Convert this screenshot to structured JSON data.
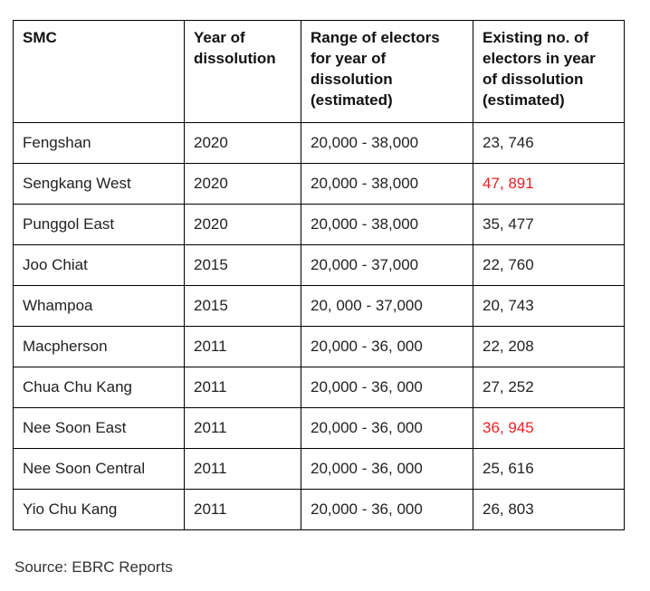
{
  "table": {
    "header": [
      [
        "SMC"
      ],
      [
        "Year of",
        "dissolution"
      ],
      [
        "Range of electors",
        "for year of",
        "dissolution",
        "(estimated)"
      ],
      [
        "Existing no. of",
        "electors in year",
        "of dissolution",
        "(estimated)"
      ]
    ],
    "rows": [
      [
        "Fengshan",
        "2020",
        "20,000 - 38,000",
        "23, 746"
      ],
      [
        "Sengkang West",
        "2020",
        "20,000 - 38,000",
        "47, 891"
      ],
      [
        "Punggol East",
        "2020",
        "20,000 - 38,000",
        "35, 477"
      ],
      [
        "Joo Chiat",
        "2015",
        "20,000 - 37,000",
        "22, 760"
      ],
      [
        "Whampoa",
        "2015",
        "20, 000 - 37,000",
        "20, 743"
      ],
      [
        "Macpherson",
        "2011",
        "20,000 - 36, 000",
        "22, 208"
      ],
      [
        "Chua Chu Kang",
        "2011",
        "20,000 - 36, 000",
        "27, 252"
      ],
      [
        "Nee Soon East",
        "2011",
        "20,000 - 36, 000",
        "36, 945"
      ],
      [
        "Nee Soon Central",
        "2011",
        "20,000 - 36, 000",
        "25, 616"
      ],
      [
        "Yio Chu Kang",
        "2011",
        "20,000 - 36, 000",
        "26, 803"
      ]
    ]
  },
  "source": "Source: EBRC Reports"
}
